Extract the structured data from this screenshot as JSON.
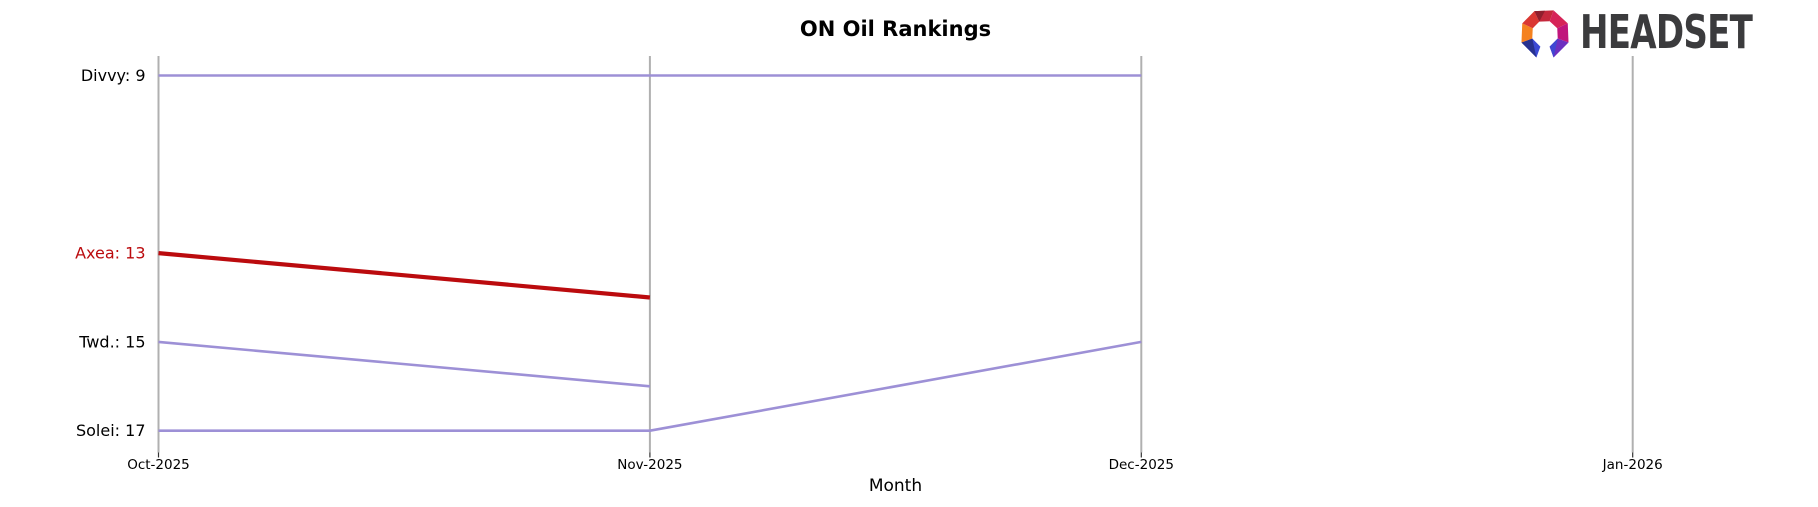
{
  "header": {
    "title": "ON Oil Rankings"
  },
  "logo": {
    "brand_text": "HEADSET"
  },
  "chart_data": {
    "type": "line",
    "subtype": "ranking-bump-chart",
    "title": "ON Oil Rankings",
    "xlabel": "Month",
    "ylabel": "",
    "categories": [
      "Oct-2025",
      "Nov-2025",
      "Dec-2025",
      "Jan-2026"
    ],
    "series": [
      {
        "name": "Divvy",
        "axis_label": "Divvy: 9",
        "values": [
          9,
          9,
          9,
          null
        ],
        "color": "#9d90d6",
        "label_color": "#000000",
        "line_width": 2.6
      },
      {
        "name": "Axea",
        "axis_label": "Axea: 13",
        "values": [
          13,
          14,
          null,
          null
        ],
        "color": "#bb0b0e",
        "label_color": "#bb0b0e",
        "line_width": 4.2
      },
      {
        "name": "Twd.",
        "axis_label": "Twd.: 15",
        "values": [
          15,
          16,
          null,
          null
        ],
        "color": "#9d90d6",
        "label_color": "#000000",
        "line_width": 2.6
      },
      {
        "name": "Solei",
        "axis_label": "Solei: 17",
        "values": [
          17,
          17,
          15,
          null
        ],
        "color": "#9d90d6",
        "label_color": "#000000",
        "line_width": 2.6
      }
    ],
    "y_axis": {
      "inverted": true,
      "range": [
        8.5,
        17.5
      ],
      "unit": "rank",
      "tick_labels_shown": false
    },
    "x_axis": {
      "style": "one-vertical-gridline-per-category",
      "tick_labels_shown": true
    },
    "legend": "series-start-labels-left",
    "grid": "vertical-only",
    "axis_color": "#b0b0b0",
    "tick_color": "#333333",
    "text_color": "#000000"
  }
}
